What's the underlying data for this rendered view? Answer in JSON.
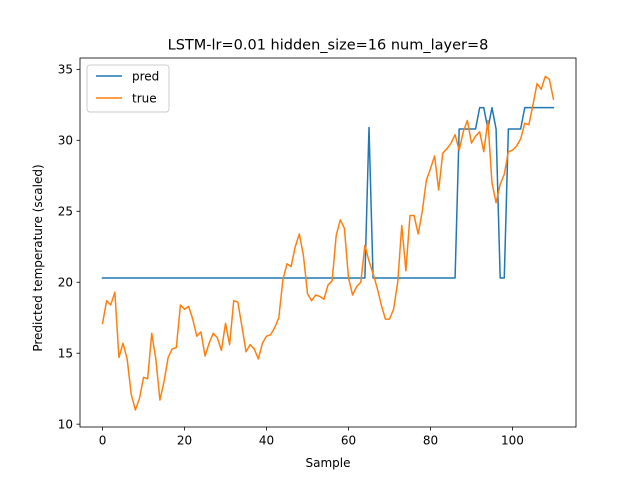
{
  "chart_data": {
    "type": "line",
    "title": "LSTM-lr=0.01 hidden_size=16 num_layer=8",
    "xlabel": "Sample",
    "ylabel": "Predicted temperature (scaled)",
    "xlim": [
      -5.5,
      115.5
    ],
    "ylim": [
      9.8,
      35.8
    ],
    "xticks": [
      0,
      20,
      40,
      60,
      80,
      100
    ],
    "yticks": [
      10,
      15,
      20,
      25,
      30,
      35
    ],
    "grid": false,
    "legend_position": "top-left",
    "series": [
      {
        "name": "pred",
        "color": "#1f77b4",
        "x": [
          0,
          64,
          65,
          66,
          86,
          87,
          91,
          92,
          93,
          94,
          95,
          96,
          97,
          98,
          99,
          100,
          102,
          103,
          110
        ],
        "y": [
          20.3,
          20.3,
          30.9,
          20.3,
          20.3,
          30.8,
          30.8,
          32.3,
          32.3,
          30.8,
          32.3,
          30.8,
          20.3,
          20.3,
          30.8,
          30.8,
          30.8,
          32.3,
          32.3
        ]
      },
      {
        "name": "true",
        "color": "#ff7f0e",
        "x": [
          0,
          1,
          2,
          3,
          4,
          5,
          6,
          7,
          8,
          9,
          10,
          11,
          12,
          13,
          14,
          15,
          16,
          17,
          18,
          19,
          20,
          21,
          22,
          23,
          24,
          25,
          26,
          27,
          28,
          29,
          30,
          31,
          32,
          33,
          34,
          35,
          36,
          37,
          38,
          39,
          40,
          41,
          42,
          43,
          44,
          45,
          46,
          47,
          48,
          49,
          50,
          51,
          52,
          53,
          54,
          55,
          56,
          57,
          58,
          59,
          60,
          61,
          62,
          63,
          64,
          65,
          66,
          67,
          68,
          69,
          70,
          71,
          72,
          73,
          74,
          75,
          76,
          77,
          78,
          79,
          80,
          81,
          82,
          83,
          84,
          85,
          86,
          87,
          88,
          89,
          90,
          91,
          92,
          93,
          94,
          95,
          96,
          97,
          98,
          99,
          100,
          101,
          102,
          103,
          104,
          105,
          106,
          107,
          108,
          109,
          110
        ],
        "y": [
          17.1,
          18.7,
          18.4,
          19.3,
          14.7,
          15.7,
          14.6,
          12.1,
          11.0,
          11.8,
          13.3,
          13.2,
          16.4,
          14.6,
          11.7,
          13.0,
          14.7,
          15.3,
          15.4,
          18.4,
          18.1,
          18.3,
          17.4,
          16.2,
          16.5,
          14.8,
          15.7,
          16.4,
          16.1,
          15.2,
          17.1,
          15.6,
          18.7,
          18.6,
          16.9,
          15.1,
          15.6,
          15.3,
          14.6,
          15.7,
          16.2,
          16.3,
          16.8,
          17.5,
          20.2,
          21.3,
          21.1,
          22.5,
          23.4,
          21.9,
          19.2,
          18.7,
          19.1,
          19.0,
          18.8,
          19.8,
          20.1,
          23.3,
          24.4,
          23.8,
          20.3,
          19.1,
          19.7,
          20.0,
          22.6,
          21.5,
          20.6,
          19.6,
          18.4,
          17.4,
          17.4,
          18.1,
          20.0,
          24.0,
          20.8,
          24.7,
          24.7,
          23.4,
          25.0,
          27.2,
          28.0,
          28.9,
          26.5,
          29.1,
          29.4,
          29.8,
          30.4,
          29.3,
          30.6,
          31.4,
          29.8,
          30.3,
          30.6,
          29.2,
          31.4,
          27.0,
          25.6,
          26.9,
          27.6,
          29.2,
          29.3,
          29.6,
          30.1,
          31.2,
          31.1,
          32.5,
          34.0,
          33.6,
          34.5,
          34.3,
          32.9
        ]
      }
    ]
  }
}
